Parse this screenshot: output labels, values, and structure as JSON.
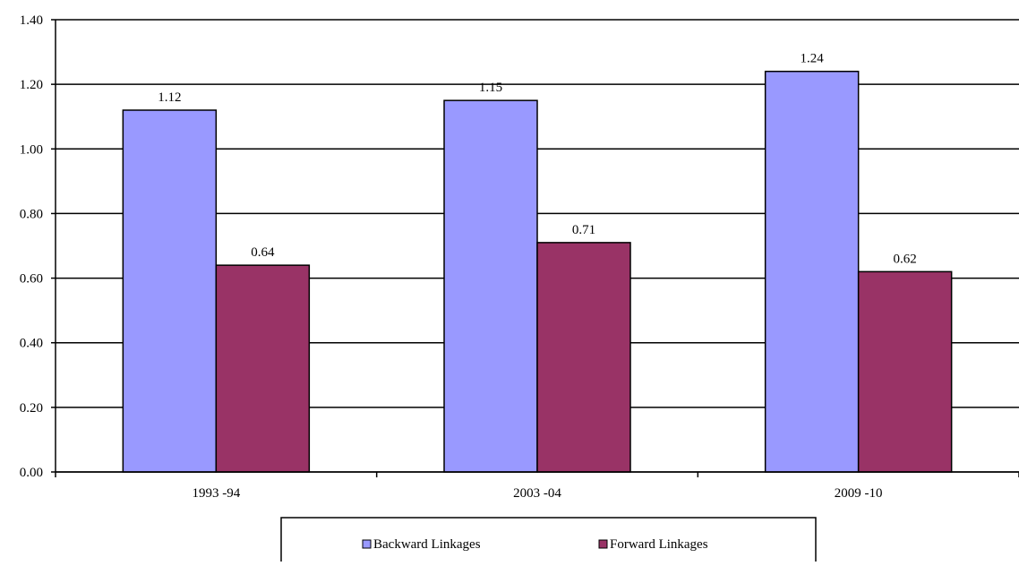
{
  "chart_data": {
    "type": "bar",
    "categories": [
      "1993 -94",
      "2003 -04",
      "2009 -10"
    ],
    "series": [
      {
        "name": "Backward Linkages",
        "values": [
          1.12,
          1.15,
          1.24
        ],
        "color": "#9999FF"
      },
      {
        "name": "Forward Linkages",
        "values": [
          0.64,
          0.71,
          0.62
        ],
        "color": "#993366"
      }
    ],
    "data_labels": [
      [
        "1.12",
        "1.15",
        "1.24"
      ],
      [
        "0.64",
        "0.71",
        "0.62"
      ]
    ],
    "ylim": [
      0,
      1.4
    ],
    "yticks": [
      "0.00",
      "0.20",
      "0.40",
      "0.60",
      "0.80",
      "1.00",
      "1.20",
      "1.40"
    ],
    "grid": true,
    "legend_position": "bottom",
    "title": "",
    "xlabel": "",
    "ylabel": ""
  }
}
